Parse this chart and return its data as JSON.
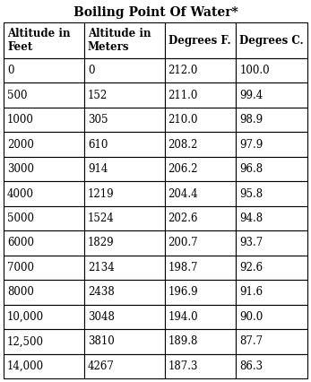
{
  "title": "Boiling Point Of Water*",
  "col_headers": [
    "Altitude in\nFeet",
    "Altitude in\nMeters",
    "Degrees F.",
    "Degrees C."
  ],
  "rows": [
    [
      "0",
      "0",
      "212.0",
      "100.0"
    ],
    [
      "500",
      "152",
      "211.0",
      "99.4"
    ],
    [
      "1000",
      "305",
      "210.0",
      "98.9"
    ],
    [
      "2000",
      "610",
      "208.2",
      "97.9"
    ],
    [
      "3000",
      "914",
      "206.2",
      "96.8"
    ],
    [
      "4000",
      "1219",
      "204.4",
      "95.8"
    ],
    [
      "5000",
      "1524",
      "202.6",
      "94.8"
    ],
    [
      "6000",
      "1829",
      "200.7",
      "93.7"
    ],
    [
      "7000",
      "2134",
      "198.7",
      "92.6"
    ],
    [
      "8000",
      "2438",
      "196.9",
      "91.6"
    ],
    [
      "10,000",
      "3048",
      "194.0",
      "90.0"
    ],
    [
      "12,500",
      "3810",
      "189.8",
      "87.7"
    ],
    [
      "14,000",
      "4267",
      "187.3",
      "86.3"
    ]
  ],
  "bg_color": "#ffffff",
  "border_color": "#000000",
  "text_color": "#000000",
  "title_fontsize": 10,
  "header_fontsize": 8.5,
  "cell_fontsize": 8.5
}
